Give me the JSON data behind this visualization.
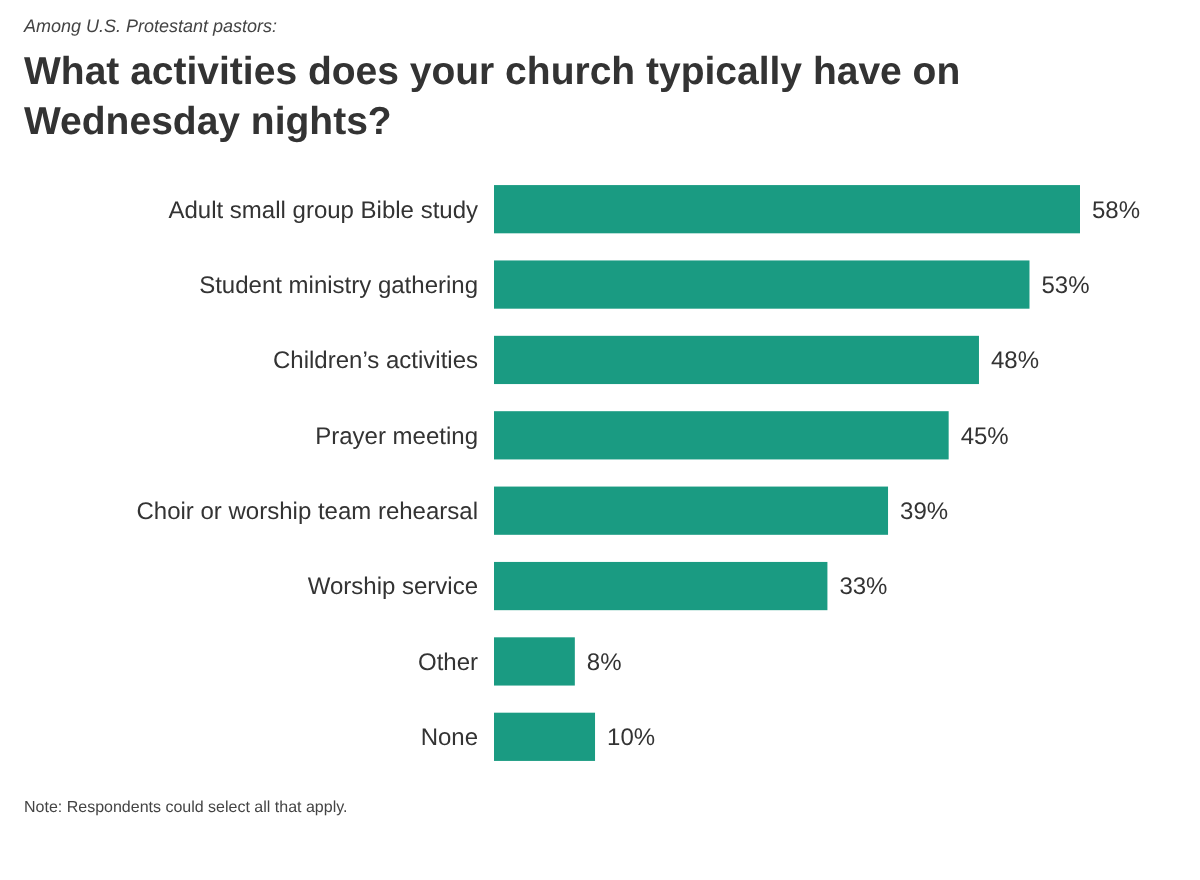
{
  "chart_data": {
    "type": "bar",
    "orientation": "horizontal",
    "subtitle": "Among U.S. Protestant pastors:",
    "title": "What activities does your church typically have on Wednesday nights?",
    "categories": [
      "Adult small group Bible study",
      "Student ministry gathering",
      "Children’s activities",
      "Prayer meeting",
      "Choir or worship team rehearsal",
      "Worship service",
      "Other",
      "None"
    ],
    "values": [
      58,
      53,
      48,
      45,
      39,
      33,
      8,
      10
    ],
    "value_labels": [
      "58%",
      "53%",
      "48%",
      "45%",
      "39%",
      "33%",
      "8%",
      "10%"
    ],
    "color": "#1a9b82",
    "annotations": [
      "Note: Respondents could select all that apply."
    ]
  }
}
